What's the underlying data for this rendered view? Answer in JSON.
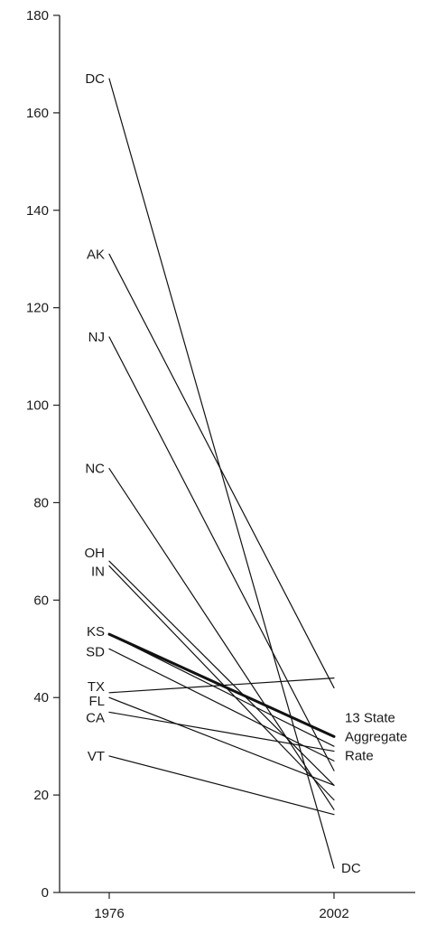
{
  "chart_data": {
    "type": "line",
    "x": [
      "1976",
      "2002"
    ],
    "ylim": [
      0,
      180
    ],
    "yticks": [
      0,
      20,
      40,
      60,
      80,
      100,
      120,
      140,
      160,
      180
    ],
    "grid": false,
    "series": [
      {
        "name": "DC",
        "values": [
          167,
          5
        ],
        "start_label": "DC",
        "end_label": "DC"
      },
      {
        "name": "AK",
        "values": [
          131,
          42
        ],
        "start_label": "AK"
      },
      {
        "name": "NJ",
        "values": [
          114,
          25
        ],
        "start_label": "NJ"
      },
      {
        "name": "NC",
        "values": [
          87,
          17
        ],
        "start_label": "NC"
      },
      {
        "name": "OH",
        "values": [
          68,
          22
        ],
        "start_label": "OH"
      },
      {
        "name": "IN",
        "values": [
          67,
          19
        ],
        "start_label": "IN"
      },
      {
        "name": "KS",
        "values": [
          53,
          30
        ],
        "start_label": "KS"
      },
      {
        "name": "SD",
        "values": [
          50,
          27
        ],
        "start_label": "SD"
      },
      {
        "name": "TX",
        "values": [
          41,
          44
        ],
        "start_label": "TX"
      },
      {
        "name": "FL",
        "values": [
          40,
          22
        ],
        "start_label": "FL"
      },
      {
        "name": "CA",
        "values": [
          37,
          29
        ],
        "start_label": "CA"
      },
      {
        "name": "VT",
        "values": [
          28,
          16
        ],
        "start_label": "VT"
      },
      {
        "name": "13 State Aggregate Rate",
        "values": [
          53,
          32
        ],
        "bold": true
      }
    ],
    "aggregate_label": [
      "13 State",
      "Aggregate",
      "Rate"
    ]
  }
}
